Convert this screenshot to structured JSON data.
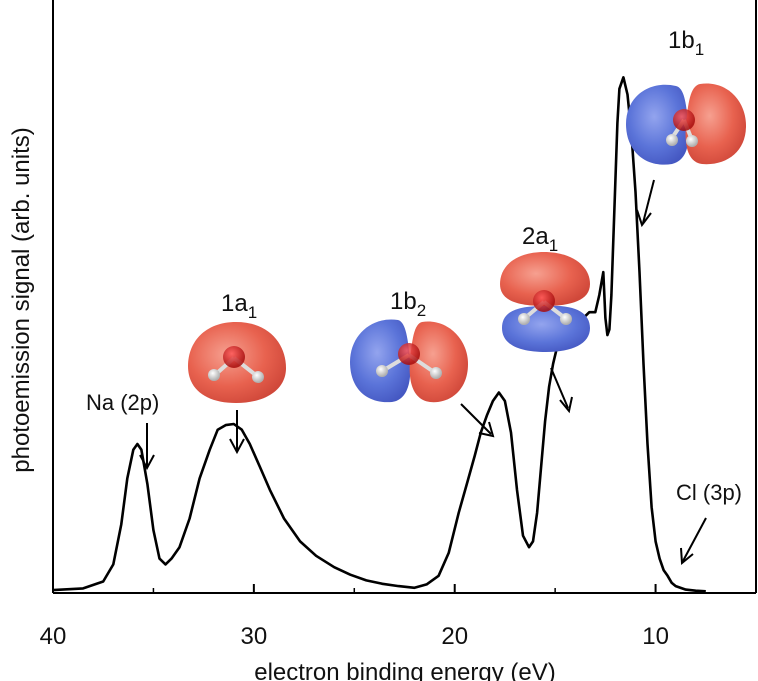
{
  "chart_data": {
    "type": "line",
    "title": "",
    "xlabel": "electron binding energy  (eV)",
    "ylabel": "photoemission signal  (arb. units)",
    "xlim": [
      40,
      5
    ],
    "ylim": [
      0,
      100
    ],
    "xticks": [
      40,
      30,
      20,
      10
    ],
    "yticks": [],
    "grid": false,
    "series": [
      {
        "x": [
          40,
          38.5,
          37.5,
          37,
          36.6,
          36.3,
          36,
          35.8,
          35.6,
          35.3,
          35,
          34.7,
          34.4,
          34.1,
          33.7,
          33.2,
          32.7,
          32.2,
          31.8,
          31.4,
          31,
          30.6,
          30.2,
          29.7,
          29.2,
          28.5,
          27.7,
          26.9,
          26,
          25.2,
          24.4,
          23.6,
          22.8,
          22,
          21.4,
          20.8,
          20.3,
          19.8,
          19.4,
          19,
          18.7,
          18.4,
          18.1,
          17.8,
          17.5,
          17.2,
          16.9,
          16.6,
          16.3,
          16.1,
          15.9,
          15.7,
          15.5,
          15.3,
          15.1,
          14.9,
          14.7,
          14.5,
          14.2,
          13.9,
          13.6,
          13.3,
          13,
          12.8,
          12.6,
          12.5,
          12.4,
          12.3,
          12.2,
          12.1,
          12,
          11.9,
          11.8,
          11.6,
          11.4,
          11.2,
          11,
          10.8,
          10.6,
          10.4,
          10.2,
          10,
          9.8,
          9.6,
          9.4,
          9.2,
          9,
          8.5,
          8,
          7.5
        ],
        "y": [
          0.5,
          0.8,
          2,
          5,
          12,
          20,
          25,
          26,
          25,
          19,
          11,
          6,
          5,
          6,
          8,
          13,
          20,
          25,
          28.5,
          29.3,
          29.5,
          28.5,
          26,
          22,
          18,
          13,
          9,
          6.5,
          4.5,
          3.2,
          2.2,
          1.6,
          1.2,
          0.9,
          1.5,
          3,
          7,
          14,
          19,
          24,
          28,
          31,
          33.5,
          35,
          33.5,
          28,
          18,
          10,
          8,
          9,
          14,
          22,
          30,
          36,
          40,
          43,
          44.5,
          45,
          46,
          47,
          48,
          49,
          49,
          52,
          56,
          48,
          45,
          46,
          52,
          62,
          72,
          82,
          88,
          90,
          87,
          80,
          70,
          56,
          40,
          26,
          15,
          9,
          6,
          4,
          3,
          1.8,
          1.2,
          0.6,
          0.4,
          0.3
        ]
      }
    ],
    "annotations": [
      {
        "text": "Na (2p)",
        "x": 35.7,
        "y": 26
      },
      {
        "text_main": "1a",
        "text_sub": "1",
        "x": 31.2,
        "y": 29.5
      },
      {
        "text_main": "1b",
        "text_sub": "2",
        "x": 18.4,
        "y": 31
      },
      {
        "text_main": "2a",
        "text_sub": "1",
        "x": 14.7,
        "y": 44
      },
      {
        "text_main": "1b",
        "text_sub": "1",
        "x": 11.4,
        "y": 93
      },
      {
        "text": "Cl (3p)",
        "x": 9.2,
        "y": 1.8
      }
    ]
  },
  "colors": {
    "curve": "#000000",
    "orbital_positive": "#e8624f",
    "orbital_negative": "#5b74d9",
    "oxygen": "#c81414",
    "hydrogen": "#eeeeee"
  }
}
